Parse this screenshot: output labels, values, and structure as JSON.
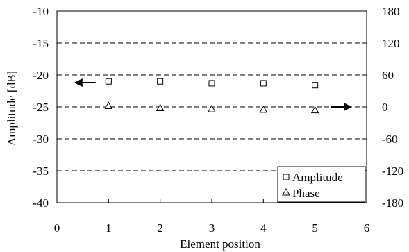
{
  "chart_data": {
    "type": "scatter",
    "title": "",
    "xlabel": "Element position",
    "ylabel": "Amplitude [dB]",
    "y2label": "",
    "xlim": [
      0,
      6
    ],
    "ylim": [
      -40,
      -10
    ],
    "y2lim": [
      -180,
      180
    ],
    "xticks": [
      0,
      1,
      2,
      3,
      4,
      5,
      6
    ],
    "yticks": [
      -10,
      -15,
      -20,
      -25,
      -30,
      -35,
      -40
    ],
    "y2ticks": [
      180,
      120,
      60,
      0,
      -60,
      -120,
      -180
    ],
    "grid": "horizontal dashed",
    "legend_position": "bottom-right",
    "series": [
      {
        "name": "Amplitude",
        "axis": "left",
        "marker": "square",
        "x": [
          1,
          2,
          3,
          4,
          5
        ],
        "y": [
          -21.0,
          -21.0,
          -21.3,
          -21.3,
          -21.6
        ]
      },
      {
        "name": "Phase",
        "axis": "right",
        "marker": "triangle",
        "x": [
          1,
          2,
          3,
          4,
          5
        ],
        "y": [
          2,
          -2,
          -4,
          -5,
          -6
        ]
      }
    ],
    "annotations": [
      {
        "type": "arrow",
        "direction": "left",
        "points_to": "left-axis",
        "x_from": 0.75,
        "x_to": 0.35,
        "y": -21.2,
        "axis": "left"
      },
      {
        "type": "arrow",
        "direction": "right",
        "points_to": "right-axis",
        "x_from": 5.3,
        "x_to": 5.7,
        "y": 0,
        "axis": "right"
      }
    ]
  }
}
